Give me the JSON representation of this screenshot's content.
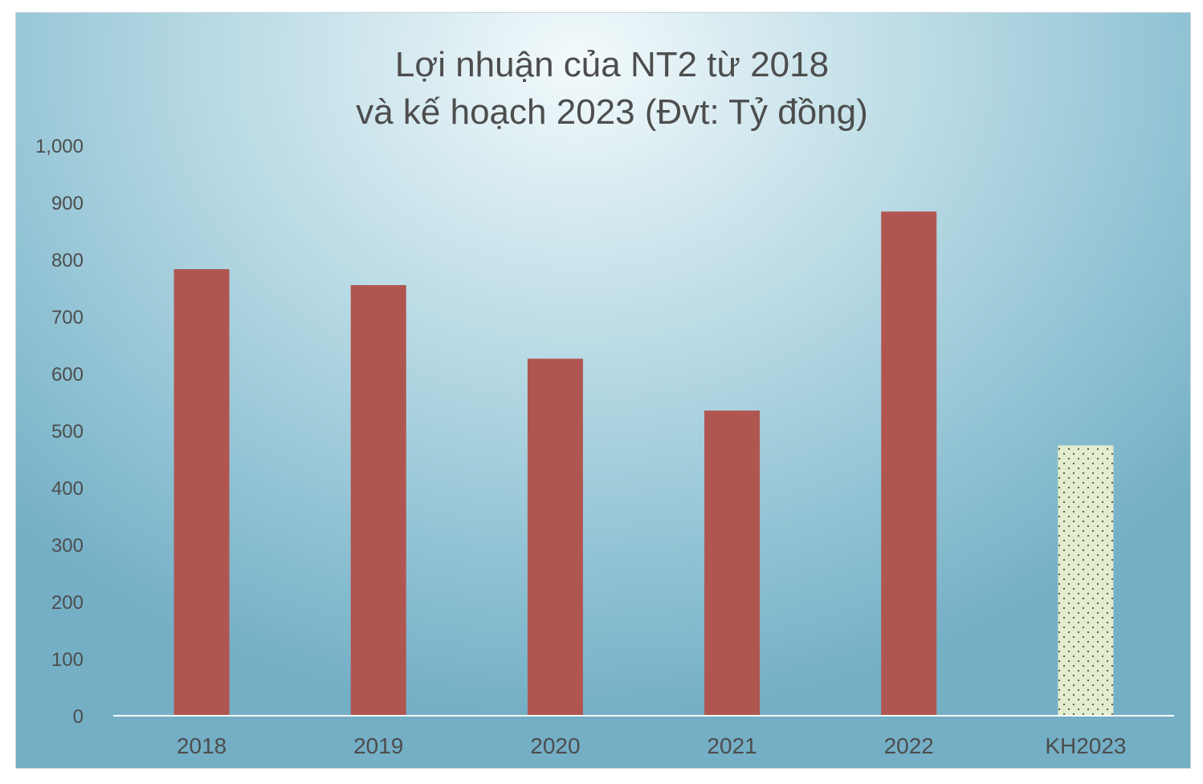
{
  "chart_data": {
    "type": "bar",
    "title": [
      "Lợi nhuận của NT2 từ 2018",
      "và kế hoạch 2023 (Đvt: Tỷ đồng)"
    ],
    "categories": [
      "2018",
      "2019",
      "2020",
      "2021",
      "2022",
      "KH2023"
    ],
    "values": [
      783,
      755,
      626,
      535,
      884,
      474
    ],
    "ylim": [
      0,
      1000
    ],
    "yticks": [
      0,
      100,
      200,
      300,
      400,
      500,
      600,
      700,
      800,
      900,
      1000
    ],
    "ytick_labels": [
      "0",
      "100",
      "200",
      "300",
      "400",
      "500",
      "600",
      "700",
      "800",
      "900",
      "1,000"
    ],
    "grid": false,
    "legend": "none",
    "colors": {
      "actual_bar": "#b05651",
      "plan_bar": "#e3eccd",
      "plan_dots": "#4a5a3a",
      "axis": "#ffffff",
      "text": "#4d4d4d"
    },
    "bar_style": [
      "solid",
      "solid",
      "solid",
      "solid",
      "solid",
      "dotted"
    ]
  }
}
